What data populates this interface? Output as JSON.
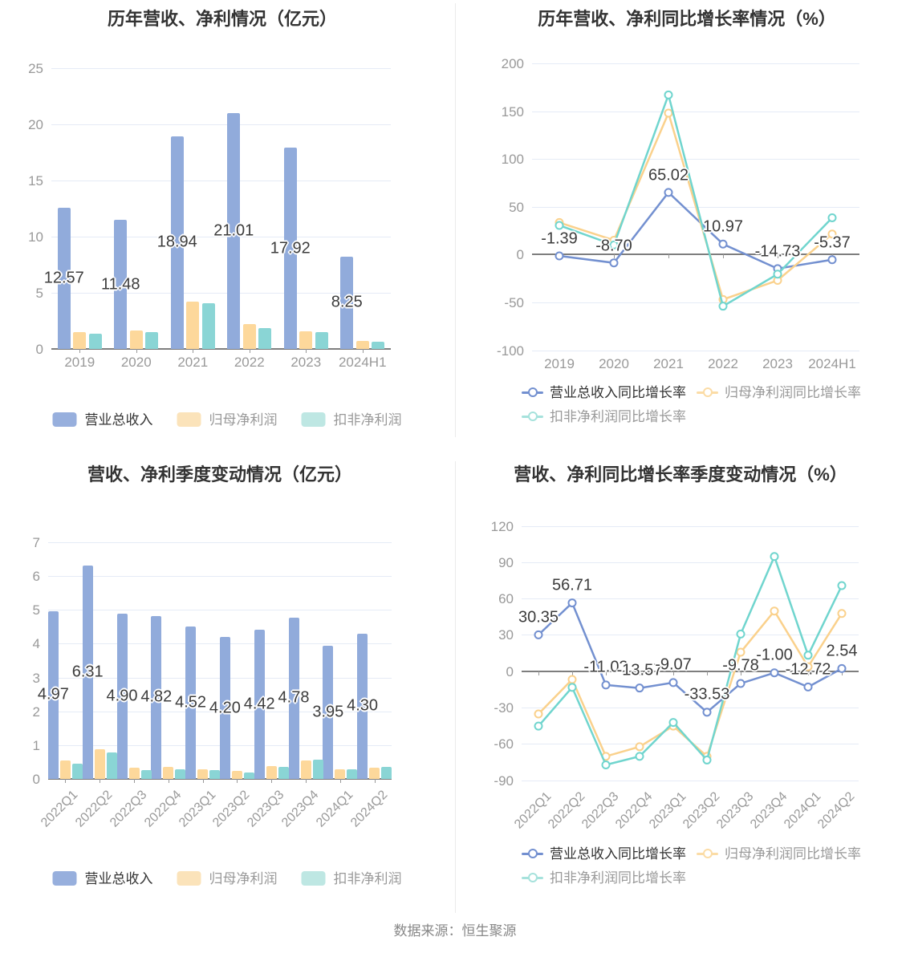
{
  "page": {
    "source_note": "数据来源：恒生聚源"
  },
  "chart_data": [
    {
      "type": "bar",
      "title": "历年营收、净利情况（亿元）",
      "categories": [
        "2019",
        "2020",
        "2021",
        "2022",
        "2023",
        "2024H1"
      ],
      "y_ticks": [
        "0",
        "5",
        "10",
        "15",
        "20",
        "25"
      ],
      "ylim": [
        0,
        25
      ],
      "grid": true,
      "legend_position": "bottom-center",
      "series": [
        {
          "name": "营业总收入",
          "color": "#91ABDB",
          "legend_color": "#97AFDD",
          "values": [
            12.57,
            11.48,
            18.94,
            21.01,
            17.92,
            8.25
          ],
          "labels": [
            "12.57",
            "11.48",
            "18.94",
            "21.01",
            "17.92",
            "8.25"
          ]
        },
        {
          "name": "归母净利润",
          "color": "#FDD89B",
          "legend_color": "#FBE3BA",
          "values": [
            1.48,
            1.66,
            4.21,
            2.21,
            1.59,
            0.71
          ]
        },
        {
          "name": "扣非净利润",
          "color": "#8AD5D5",
          "legend_color": "#BEE7E3",
          "values": [
            1.38,
            1.52,
            4.09,
            1.86,
            1.48,
            0.66
          ]
        }
      ]
    },
    {
      "type": "line",
      "title": "历年营收、净利同比增长率情况（%）",
      "categories": [
        "2019",
        "2020",
        "2021",
        "2022",
        "2023",
        "2024H1"
      ],
      "y_ticks": [
        "-100",
        "-50",
        "0",
        "50",
        "100",
        "150",
        "200"
      ],
      "ylim": [
        -100,
        200
      ],
      "grid": true,
      "legend_position": "bottom-left-two-rows",
      "series": [
        {
          "name": "营业总收入同比增长率",
          "color": "#7390D0",
          "legend_color": "#7390D0",
          "values": [
            -1.39,
            -8.7,
            65.02,
            10.97,
            -14.73,
            -5.37
          ],
          "labels": [
            "-1.39",
            "-8.70",
            "65.02",
            "10.97",
            "-14.73",
            "-5.37"
          ]
        },
        {
          "name": "归母净利润同比增长率",
          "color": "#FAD18C",
          "legend_color": "#FBDCA6",
          "values": [
            33.5,
            15,
            148,
            -47,
            -27,
            21.5
          ]
        },
        {
          "name": "扣非净利润同比增长率",
          "color": "#70D5CE",
          "legend_color": "#A6E2DC",
          "values": [
            30.5,
            10,
            167,
            -54,
            -20.5,
            38.5
          ]
        }
      ]
    },
    {
      "type": "bar",
      "title": "营收、净利季度变动情况（亿元）",
      "categories": [
        "2022Q1",
        "2022Q2",
        "2022Q3",
        "2022Q4",
        "2023Q1",
        "2023Q2",
        "2023Q3",
        "2023Q4",
        "2024Q1",
        "2024Q2"
      ],
      "y_ticks": [
        "0",
        "1",
        "2",
        "3",
        "4",
        "5",
        "6",
        "7"
      ],
      "ylim": [
        0,
        7
      ],
      "grid": true,
      "x_rotate": 45,
      "legend_position": "bottom-center",
      "series": [
        {
          "name": "营业总收入",
          "color": "#91ABDB",
          "legend_color": "#97AFDD",
          "values": [
            4.97,
            6.31,
            4.9,
            4.82,
            4.52,
            4.2,
            4.42,
            4.78,
            3.95,
            4.3
          ],
          "labels": [
            "4.97",
            "6.31",
            "4.90",
            "4.82",
            "4.52",
            "4.20",
            "4.42",
            "4.78",
            "3.95",
            "4.30"
          ]
        },
        {
          "name": "归母净利润",
          "color": "#FDD89B",
          "legend_color": "#FBE3BA",
          "values": [
            0.54,
            0.87,
            0.34,
            0.36,
            0.29,
            0.24,
            0.39,
            0.55,
            0.29,
            0.34
          ]
        },
        {
          "name": "扣非净利润",
          "color": "#8AD5D5",
          "legend_color": "#BEE7E3",
          "values": [
            0.44,
            0.79,
            0.26,
            0.28,
            0.25,
            0.18,
            0.36,
            0.57,
            0.29,
            0.36
          ]
        }
      ]
    },
    {
      "type": "line",
      "title": "营收、净利同比增长率季度变动情况（%）",
      "categories": [
        "2022Q1",
        "2022Q2",
        "2022Q3",
        "2022Q4",
        "2023Q1",
        "2023Q2",
        "2023Q3",
        "2023Q4",
        "2024Q1",
        "2024Q2"
      ],
      "y_ticks": [
        "-90",
        "-60",
        "-30",
        "0",
        "30",
        "60",
        "90",
        "120"
      ],
      "ylim": [
        -90,
        120
      ],
      "grid": true,
      "x_rotate": 45,
      "legend_position": "bottom-left-two-rows",
      "series": [
        {
          "name": "营业总收入同比增长率",
          "color": "#7390D0",
          "legend_color": "#7390D0",
          "values": [
            30.35,
            56.71,
            -11.03,
            -13.57,
            -9.07,
            -33.53,
            -9.78,
            -1.0,
            -12.72,
            2.54
          ],
          "labels": [
            "30.35",
            "56.71",
            "-11.03",
            "-13.57",
            "-9.07",
            "-33.53",
            "-9.78",
            "-1.00",
            "-12.72",
            "2.54"
          ]
        },
        {
          "name": "归母净利润同比增长率",
          "color": "#FAD18C",
          "legend_color": "#FBDCA6",
          "values": [
            -35,
            -6.5,
            -70,
            -62,
            -45,
            -70,
            16,
            50,
            4,
            48
          ]
        },
        {
          "name": "扣非净利润同比增长率",
          "color": "#70D5CE",
          "legend_color": "#A6E2DC",
          "values": [
            -45,
            -13,
            -77,
            -70,
            -42,
            -73,
            31,
            95,
            13.5,
            71
          ]
        }
      ]
    }
  ]
}
